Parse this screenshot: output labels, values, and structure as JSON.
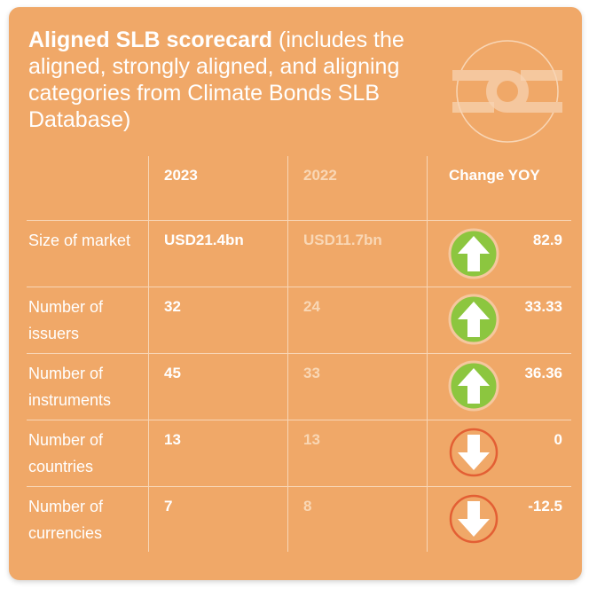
{
  "title": {
    "bold": "Aligned SLB scorecard",
    "rest": " (includes the aligned, strongly aligned, and aligning categories from Climate Bonds SLB Database)"
  },
  "columns": {
    "current": "2023",
    "previous": "2022",
    "change": "Change YOY"
  },
  "rows": [
    {
      "label": "Size of market",
      "current": "USD21.4bn",
      "previous": "USD11.7bn",
      "change": "82.9",
      "direction": "up-arrow-icon"
    },
    {
      "label": "Number of issuers",
      "current": "32",
      "previous": "24",
      "change": "33.33",
      "direction": "up-arrow-icon"
    },
    {
      "label": "Number of instruments",
      "current": "45",
      "previous": "33",
      "change": "36.36",
      "direction": "up-arrow-icon"
    },
    {
      "label": "Number of countries",
      "current": "13",
      "previous": "13",
      "change": "0",
      "direction": "down-arrow-icon"
    },
    {
      "label": "Number of currencies",
      "current": "7",
      "previous": "8",
      "change": "-12.5",
      "direction": "down-arrow-icon"
    }
  ],
  "colors": {
    "background": "#F0A868",
    "up": "#8CC63F",
    "down": "#E35F34",
    "faded_text": "#F9D7B5"
  }
}
